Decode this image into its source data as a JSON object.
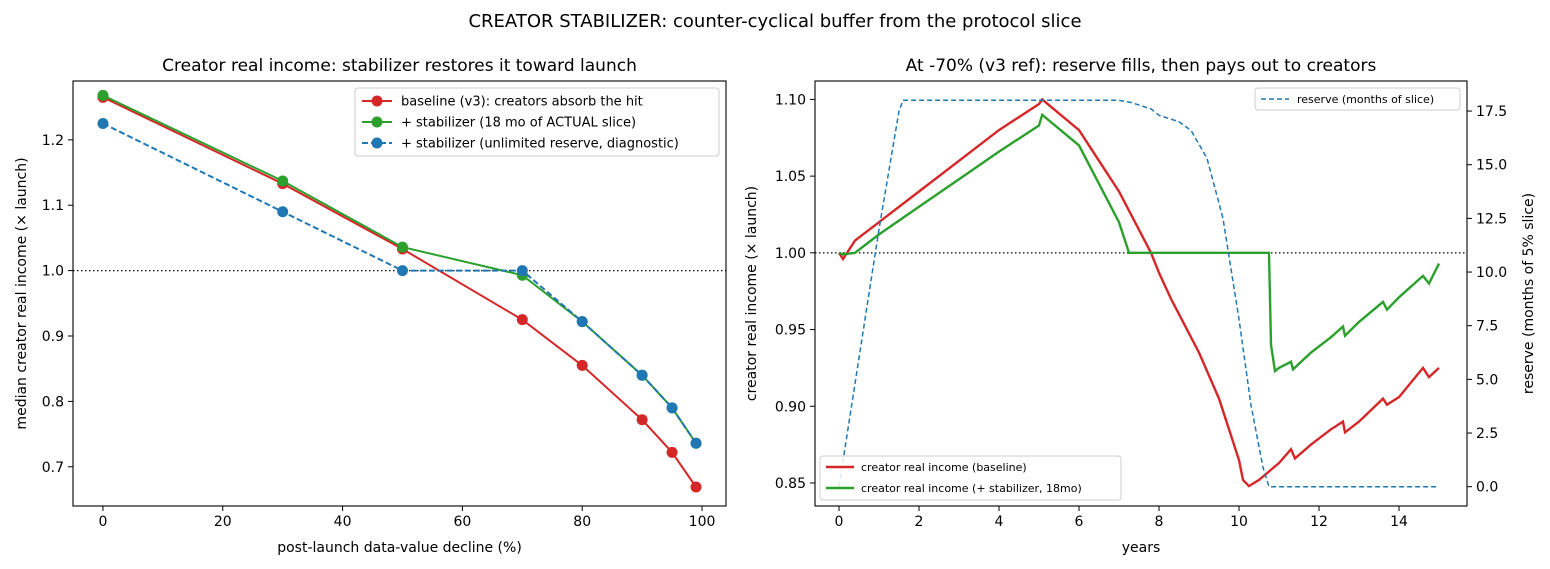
{
  "suptitle": "CREATOR STABILIZER: counter-cyclical buffer from the protocol slice",
  "colors": {
    "red": "#d62728",
    "green": "#2ca02c",
    "blue": "#1f77b4"
  },
  "chart_data": [
    {
      "type": "line",
      "title": "Creator real income: stabilizer restores it toward launch",
      "xlabel": "post-launch data-value decline (%)",
      "ylabel": "median creator real income (× launch)",
      "xlim": [
        -5,
        104
      ],
      "ylim": [
        0.64,
        1.29
      ],
      "xticks": [
        0,
        20,
        40,
        60,
        80,
        100
      ],
      "yticks": [
        0.7,
        0.8,
        0.9,
        1.0,
        1.1,
        1.2
      ],
      "reference_line": {
        "y": 1.0,
        "style": "dotted",
        "color": "#000000"
      },
      "legend_position": "top-right",
      "series": [
        {
          "name": "baseline (v3): creators absorb the hit",
          "color": "#d62728",
          "style": "solid",
          "marker": "circle",
          "x": [
            0,
            30,
            50,
            70,
            80,
            90,
            95,
            99
          ],
          "y": [
            1.265,
            1.133,
            1.033,
            0.925,
            0.855,
            0.772,
            0.722,
            0.669
          ]
        },
        {
          "name": "+ stabilizer (18 mo of ACTUAL slice)",
          "color": "#2ca02c",
          "style": "solid",
          "marker": "circle",
          "x": [
            0,
            30,
            50,
            70,
            80,
            90,
            95,
            99
          ],
          "y": [
            1.268,
            1.137,
            1.036,
            0.993,
            0.922,
            0.84,
            0.79,
            0.736
          ]
        },
        {
          "name": "+ stabilizer (unlimited reserve, diagnostic)",
          "color": "#1f77b4",
          "style": "dashed",
          "marker": "circle",
          "x": [
            0,
            30,
            50,
            70,
            80,
            90,
            95,
            99
          ],
          "y": [
            1.225,
            1.09,
            1.0,
            1.0,
            0.922,
            0.84,
            0.79,
            0.736
          ]
        }
      ]
    },
    {
      "type": "line",
      "title": "At -70% (v3 ref): reserve fills, then pays out to creators",
      "xlabel": "years",
      "ylabel": "creator real income (× launch)",
      "ylabel_right": "reserve (months of 5% slice)",
      "xlim": [
        -0.6,
        15.7
      ],
      "ylim": [
        0.835,
        1.112
      ],
      "ylim_right": [
        -0.9,
        18.9
      ],
      "xticks": [
        0,
        2,
        4,
        6,
        8,
        10,
        12,
        14
      ],
      "yticks": [
        0.85,
        0.9,
        0.95,
        1.0,
        1.05,
        1.1
      ],
      "yticks_right": [
        0.0,
        2.5,
        5.0,
        7.5,
        10.0,
        12.5,
        15.0,
        17.5
      ],
      "reference_line": {
        "y": 1.0,
        "style": "dotted",
        "color": "#000000"
      },
      "legend_positions": {
        "left_axis": "bottom-left",
        "right_axis": "top-right"
      },
      "series": [
        {
          "name": "creator real income (baseline)",
          "color": "#d62728",
          "style": "solid",
          "axis": "left",
          "x": [
            0,
            0.1,
            0.25,
            0.4,
            1.0,
            2.0,
            3.0,
            4.0,
            5.0,
            5.08,
            6.0,
            6.5,
            7.0,
            7.5,
            7.8,
            8.0,
            8.3,
            8.5,
            9.0,
            9.5,
            10.0,
            10.1,
            10.25,
            10.5,
            11.0,
            11.3,
            11.4,
            11.8,
            12.3,
            12.6,
            12.65,
            13.0,
            13.6,
            13.7,
            14.0,
            14.6,
            14.75,
            15.0
          ],
          "y": [
            1.0,
            0.996,
            1.002,
            1.008,
            1.02,
            1.04,
            1.06,
            1.08,
            1.097,
            1.1,
            1.08,
            1.06,
            1.04,
            1.015,
            1.0,
            0.987,
            0.97,
            0.96,
            0.935,
            0.905,
            0.865,
            0.852,
            0.848,
            0.852,
            0.863,
            0.872,
            0.866,
            0.875,
            0.885,
            0.89,
            0.883,
            0.89,
            0.905,
            0.901,
            0.906,
            0.925,
            0.919,
            0.925
          ]
        },
        {
          "name": "creator real income (+ stabilizer, 18mo)",
          "color": "#2ca02c",
          "style": "solid",
          "axis": "left",
          "x": [
            0,
            0.1,
            0.4,
            1.0,
            2.0,
            3.0,
            4.0,
            5.0,
            5.08,
            6.0,
            6.5,
            7.0,
            7.25,
            10.75,
            10.8,
            10.9,
            11.0,
            11.3,
            11.35,
            11.8,
            12.3,
            12.6,
            12.65,
            13.0,
            13.6,
            13.7,
            14.0,
            14.6,
            14.75,
            15.0
          ],
          "y": [
            1.0,
            0.999,
            1.0,
            1.012,
            1.03,
            1.048,
            1.066,
            1.083,
            1.09,
            1.07,
            1.045,
            1.02,
            1.0,
            1.0,
            0.94,
            0.923,
            0.925,
            0.929,
            0.924,
            0.935,
            0.945,
            0.952,
            0.946,
            0.955,
            0.968,
            0.963,
            0.971,
            0.985,
            0.98,
            0.993
          ]
        },
        {
          "name": "reserve (months of slice)",
          "color": "#1f77b4",
          "style": "dashed",
          "axis": "right",
          "x": [
            0,
            0.5,
            1.0,
            1.5,
            1.6,
            7.0,
            7.3,
            7.8,
            8.0,
            8.5,
            8.8,
            9.2,
            9.6,
            10.0,
            10.3,
            10.6,
            10.75,
            15.0
          ],
          "y": [
            0.0,
            6.0,
            12.0,
            17.5,
            18.0,
            18.0,
            17.9,
            17.6,
            17.3,
            17.0,
            16.6,
            15.3,
            12.5,
            7.8,
            3.8,
            0.9,
            0.0,
            0.0
          ]
        }
      ]
    }
  ]
}
